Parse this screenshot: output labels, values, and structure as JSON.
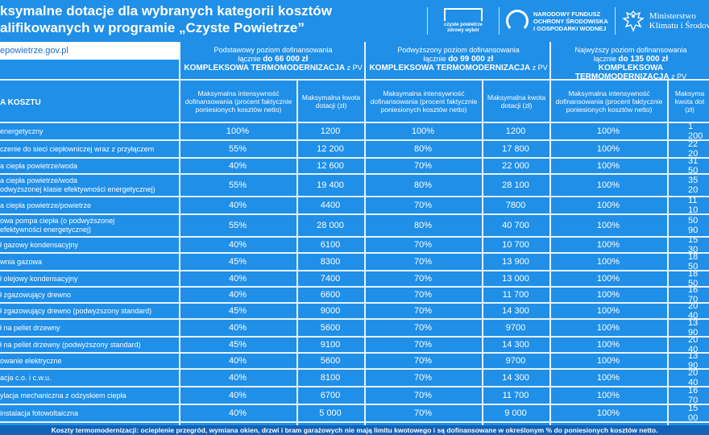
{
  "title_line1": "ksymalne dotacje dla wybranych kategorii kosztów",
  "title_line2": "alifikowanych w programie „Czyste Powietrze”",
  "logos": {
    "cp_line1": "czyste powietrze",
    "cp_line2": "zdrowy wybór",
    "nf_line1": "NARODOWY FUNDUSZ",
    "nf_line2": "OCHRONY ŚRODOWISKA",
    "nf_line3": "I GOSPODARKI WODNEJ",
    "mk_line1": "Ministerstwo",
    "mk_line2": "Klimatu i Środow"
  },
  "url": "epowietrze.gov.pl",
  "rodzaj_label": "A KOSZTU",
  "levels": [
    {
      "l1": "Podstawowy poziom dofinansowania",
      "l2a": "łącznie ",
      "amount": "do 66 000 zł",
      "l3": "KOMPLEKSOWA TERMOMODERNIZACJA",
      "l3b": " z PV"
    },
    {
      "l1": "Podwyższony poziom dofinansowania",
      "l2a": "łącznie ",
      "amount": "do 99 000 zł",
      "l3": "KOMPLEKSOWA TERMOMODERNIZACJA",
      "l3b": " z PV"
    },
    {
      "l1": "Najwyższy poziom dofinansowania",
      "l2a": "łącznie ",
      "amount": "do 135 000 zł",
      "l3": "KOMPLEKSOWA TERMOMODERNIZACJA",
      "l3b": " z PV"
    }
  ],
  "sub_intensity": "Maksymalna intensywność dofinansowania (procent faktycznie poniesionych kosztów netto)",
  "sub_amount": "Maksymalna kwota dotacji (zł)",
  "sub_amount_cut": "Maksyma kwota dot (zł)",
  "rows": [
    {
      "label": "energetyczny",
      "c": [
        "100%",
        "1200",
        "100%",
        "1200",
        "100%",
        "1 200"
      ]
    },
    {
      "label": "czenie do sieci ciepłowniczej wraz z przyłączem",
      "c": [
        "55%",
        "12 200",
        "80%",
        "17 800",
        "100%",
        "22 20"
      ]
    },
    {
      "label": "a ciepła powietrze/woda",
      "c": [
        "40%",
        "12 600",
        "70%",
        "22 000",
        "100%",
        "31 50"
      ]
    },
    {
      "label": "a ciepła powietrze/woda\nodwyższonej klasie efektywności energetycznej)",
      "c": [
        "55%",
        "19 400",
        "80%",
        "28 100",
        "100%",
        "35 20"
      ]
    },
    {
      "label": "a ciepła powietrze/powietrze",
      "c": [
        "40%",
        "4400",
        "70%",
        "7800",
        "100%",
        "11 10"
      ]
    },
    {
      "label": "owa pompa ciepła (o podwyższonej\nefektywności energetycznej)",
      "c": [
        "55%",
        "28 000",
        "80%",
        "40 700",
        "100%",
        "50 90"
      ]
    },
    {
      "label": "ł gazowy kondensacyjny",
      "c": [
        "40%",
        "6100",
        "70%",
        "10 700",
        "100%",
        "15 30"
      ]
    },
    {
      "label": "wnia gazowa",
      "c": [
        "45%",
        "8300",
        "70%",
        "13 900",
        "100%",
        "18 50"
      ]
    },
    {
      "label": "ł olejowy kondensacyjny",
      "c": [
        "40%",
        "7400",
        "70%",
        "13 000",
        "100%",
        "18 50"
      ]
    },
    {
      "label": "ł zgazowujący drewno",
      "c": [
        "40%",
        "6600",
        "70%",
        "11 700",
        "100%",
        "16 70"
      ]
    },
    {
      "label": "ł zgazowujący drewno (podwyższony standard)",
      "c": [
        "45%",
        "9000",
        "70%",
        "14 300",
        "100%",
        "20 40"
      ]
    },
    {
      "label": "ł na pellet drzewny",
      "c": [
        "40%",
        "5600",
        "70%",
        "9700",
        "100%",
        "13 90"
      ]
    },
    {
      "label": "ł na pellet drzewny (podwyższony standard)",
      "c": [
        "45%",
        "9100",
        "70%",
        "14 300",
        "100%",
        "20 40"
      ]
    },
    {
      "label": "owanie elektryczne",
      "c": [
        "40%",
        "5600",
        "70%",
        "9700",
        "100%",
        "13 90"
      ]
    },
    {
      "label": "acja c.o. i c.w.u.",
      "c": [
        "40%",
        "8100",
        "70%",
        "14 300",
        "100%",
        "20 40"
      ]
    },
    {
      "label": "ylacja mechaniczna z odzyskiem ciepła",
      "c": [
        "40%",
        "6700",
        "70%",
        "11 700",
        "100%",
        "16 70"
      ]
    },
    {
      "label": "instalacja fotowoltaiczna",
      "c": [
        "40%",
        "5 000",
        "70%",
        "9 000",
        "100%",
        "15 00"
      ]
    }
  ],
  "footer": "Koszty  termomodernizacji: ocieplenie przegród, wymiana okien, drzwi i bram garażowych nie mają limitu kwotowego i są dofinansowane w określonym % do poniesionych kosztów netto.",
  "colors": {
    "bg": "#1f8fe8",
    "lines": "#e8f2fc",
    "footer": "#1262b8",
    "url": "#1d6cc4"
  }
}
